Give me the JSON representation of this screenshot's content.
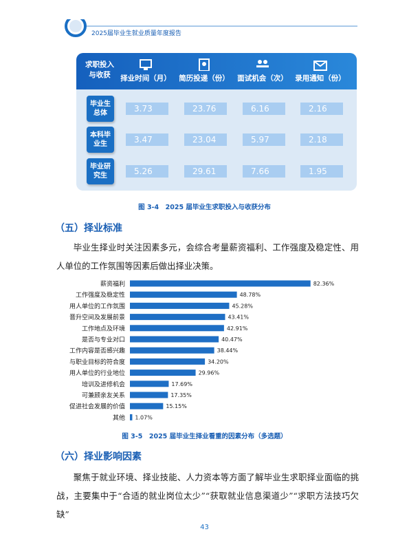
{
  "header": {
    "title": "2025届毕业生就业质量年度报告"
  },
  "table": {
    "corner": "求职投入与收获",
    "columns": [
      "择业时间（月）",
      "简历投递（份）",
      "面试机会（次）",
      "录用通知（份）"
    ],
    "rows": [
      {
        "label": "毕业生总体",
        "values": [
          3.73,
          23.76,
          6.16,
          2.16
        ]
      },
      {
        "label": "本科毕业生",
        "values": [
          3.47,
          23.04,
          5.97,
          2.18
        ]
      },
      {
        "label": "毕业研究生",
        "values": [
          5.26,
          29.61,
          7.66,
          1.95
        ]
      }
    ]
  },
  "figure_1": {
    "caption": "图 3-4　2025 届毕业生求职投入与收获分布"
  },
  "section_5": {
    "heading": "（五）择业标准",
    "paragraph": "毕业生择业时关注因素多元，会综合考量薪资福利、工作强度及稳定性、用人单位的工作氛围等因素后做出择业决策。"
  },
  "chart_data": {
    "type": "bar",
    "orientation": "horizontal",
    "color": "#1f6fc5",
    "categories": [
      "薪资福利",
      "工作强度及稳定性",
      "用人单位的工作氛围",
      "晋升空间及发展前景",
      "工作地点及环境",
      "是否与专业对口",
      "工作内容是否感兴趣",
      "与职业目标的符合度",
      "用人单位的行业地位",
      "培训及进修机会",
      "可兼顾亲友关系",
      "促进社会发展的价值",
      "其他"
    ],
    "values": [
      82.36,
      48.78,
      45.28,
      43.41,
      42.91,
      40.47,
      38.44,
      34.2,
      29.96,
      17.69,
      17.35,
      15.15,
      1.07
    ],
    "value_labels": [
      "82.36%",
      "48.78%",
      "45.28%",
      "43.41%",
      "42.91%",
      "40.47%",
      "38.44%",
      "34.20%",
      "29.96%",
      "17.69%",
      "17.35%",
      "15.15%",
      "1.07%"
    ]
  },
  "figure_2": {
    "caption": "图 3-5　2025 届毕业生择业看重的因素分布（多选题）"
  },
  "section_6": {
    "heading": "（六）择业影响因素",
    "paragraph": "聚焦于就业环境、择业技能、人力资本等方面了解毕业生求职择业面临的挑战，主要集中于“合适的就业岗位太少”“获取就业信息渠道少”“求职方法技巧欠缺”"
  },
  "footer": {
    "page_number": "43"
  }
}
